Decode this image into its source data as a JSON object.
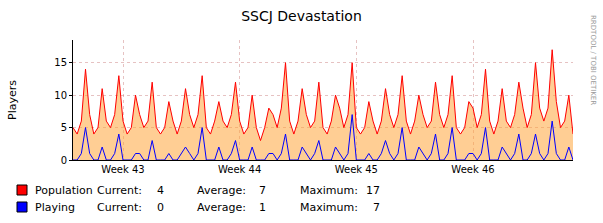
{
  "chart_data": {
    "type": "line",
    "title": "SSCJ Devastation",
    "y_label": "Players",
    "watermark": "RRDTOOL / TOBI OETIKER",
    "stat_labels": [
      "Current:",
      "Average:",
      "Maximum:"
    ],
    "x": [
      0,
      0.25,
      0.5,
      0.75,
      1,
      1.25,
      1.5,
      1.75,
      2,
      2.25,
      2.5,
      2.75,
      3,
      3.25,
      3.5,
      3.75,
      4,
      4.25,
      4.5,
      4.75,
      5,
      5.25,
      5.5,
      5.75,
      6,
      6.25,
      6.5,
      6.75,
      7,
      7.25,
      7.5,
      7.75,
      8,
      8.25,
      8.5,
      8.75,
      9,
      9.25,
      9.5,
      9.75,
      10,
      10.25,
      10.5,
      10.75,
      11,
      11.25,
      11.5,
      11.75,
      12,
      12.25,
      12.5,
      12.75,
      13,
      13.25,
      13.5,
      13.75,
      14,
      14.25,
      14.5,
      14.75,
      15,
      15.25,
      15.5,
      15.75,
      16,
      16.25,
      16.5,
      16.75,
      17,
      17.25,
      17.5,
      17.75,
      18,
      18.25,
      18.5,
      18.75,
      19,
      19.25,
      19.5,
      19.75,
      20,
      20.25,
      20.5,
      20.75,
      21,
      21.25,
      21.5,
      21.75,
      22,
      22.25,
      22.5,
      22.75,
      23,
      23.25,
      23.5,
      23.75,
      24,
      24.25,
      24.5,
      24.75,
      25,
      25.25,
      25.5,
      25.75,
      26,
      26.25,
      26.5,
      26.75,
      27,
      27.25,
      27.5,
      27.75,
      28,
      28.25,
      28.5,
      28.75,
      29,
      29.25,
      29.5,
      29.75,
      30
    ],
    "series": [
      {
        "name": "Population",
        "type": "area",
        "color": "#ff0000",
        "line_style": "solid",
        "current": 4,
        "average": 7,
        "maximum": 17,
        "values": [
          5,
          4,
          6,
          14,
          7,
          4,
          5,
          11,
          6,
          5,
          7,
          13,
          6,
          4,
          5,
          10,
          7,
          5,
          6,
          12,
          5,
          4,
          5,
          9,
          6,
          4,
          6,
          11,
          7,
          5,
          7,
          13,
          5,
          4,
          6,
          9,
          6,
          5,
          7,
          12,
          6,
          4,
          5,
          10,
          5,
          3,
          5,
          8,
          7,
          5,
          8,
          15,
          6,
          4,
          6,
          11,
          7,
          5,
          6,
          12,
          5,
          4,
          6,
          10,
          8,
          5,
          7,
          15,
          5,
          4,
          5,
          9,
          6,
          4,
          6,
          11,
          7,
          5,
          7,
          13,
          6,
          4,
          6,
          10,
          7,
          5,
          6,
          12,
          7,
          5,
          7,
          13,
          5,
          4,
          5,
          9,
          8,
          5,
          7,
          14,
          6,
          4,
          6,
          11,
          6,
          5,
          7,
          12,
          8,
          5,
          7,
          15,
          8,
          6,
          8,
          17,
          9,
          5,
          6,
          10,
          4
        ]
      },
      {
        "name": "Playing",
        "type": "line",
        "color": "#0000ff",
        "line_style": "solid",
        "current": 0,
        "average": 1,
        "maximum": 7,
        "values": [
          0,
          0,
          1,
          5,
          1,
          0,
          0,
          2,
          0,
          0,
          1,
          4,
          0,
          0,
          0,
          1,
          1,
          0,
          0,
          3,
          0,
          0,
          0,
          1,
          0,
          0,
          1,
          2,
          1,
          0,
          1,
          5,
          0,
          0,
          0,
          2,
          0,
          0,
          1,
          3,
          0,
          0,
          0,
          2,
          0,
          0,
          0,
          1,
          1,
          0,
          1,
          4,
          0,
          0,
          0,
          2,
          1,
          0,
          1,
          3,
          0,
          0,
          0,
          2,
          1,
          0,
          1,
          7,
          0,
          0,
          0,
          1,
          0,
          0,
          1,
          3,
          1,
          0,
          1,
          5,
          0,
          0,
          0,
          2,
          1,
          0,
          1,
          4,
          0,
          0,
          1,
          5,
          0,
          0,
          0,
          1,
          1,
          0,
          1,
          5,
          0,
          0,
          0,
          2,
          1,
          0,
          1,
          4,
          0,
          0,
          1,
          4,
          1,
          0,
          1,
          6,
          1,
          0,
          0,
          2,
          0
        ]
      }
    ],
    "xlim": [
      0,
      30
    ],
    "xticks": [
      {
        "value": 3,
        "label": "Week 43"
      },
      {
        "value": 10,
        "label": "Week 44"
      },
      {
        "value": 17,
        "label": "Week 45"
      },
      {
        "value": 24,
        "label": "Week 46"
      }
    ],
    "ylim": [
      0,
      18.5
    ],
    "yticks": [
      0,
      5,
      10,
      15
    ],
    "grid": true
  }
}
